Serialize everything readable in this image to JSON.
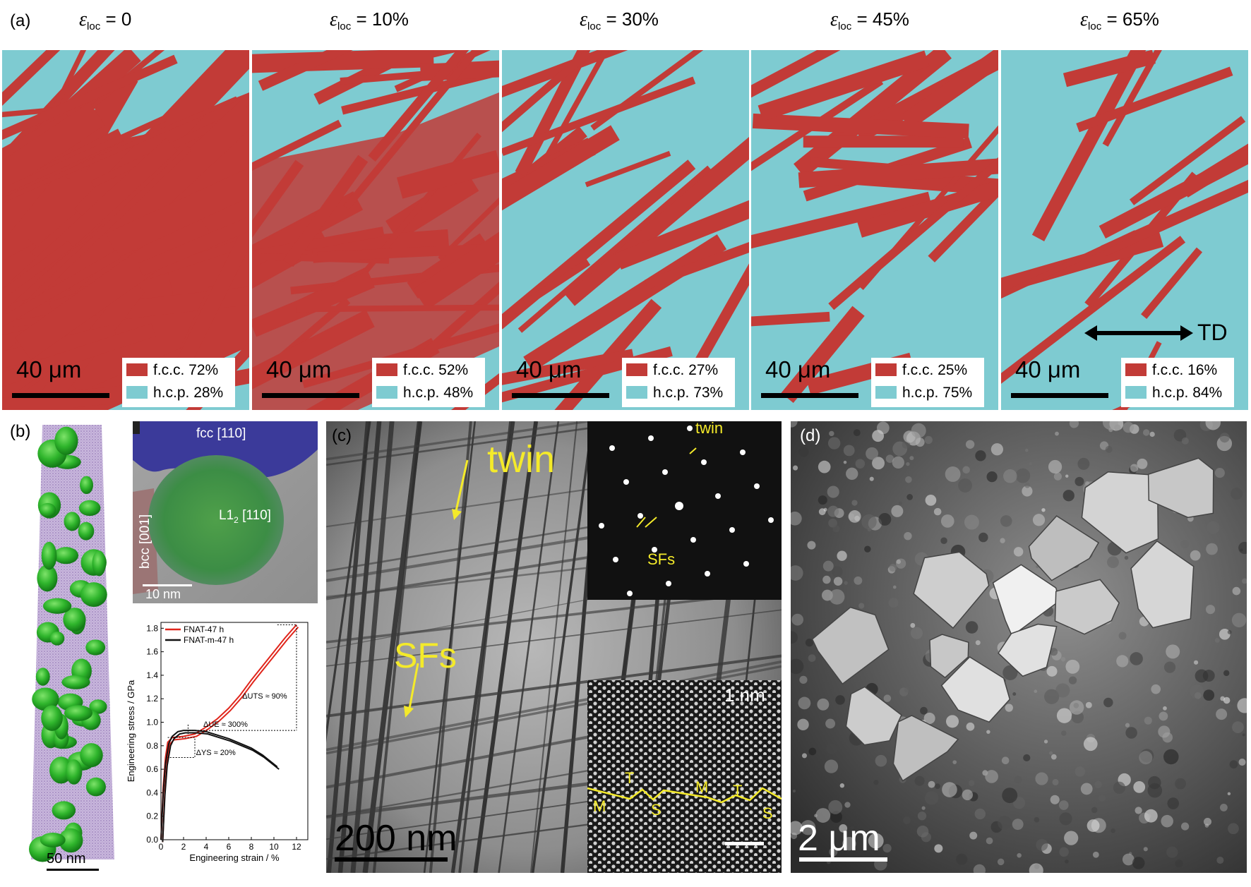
{
  "panel_labels": {
    "a": "(a)",
    "b": "(b)",
    "c": "(c)",
    "d": "(d)"
  },
  "colors": {
    "fcc": "#c23b37",
    "hcp": "#7ecbd1",
    "annotation_yellow": "#f4ea2a"
  },
  "strain_maps": [
    {
      "eps": "ε",
      "sub": "loc",
      "value": " = 0",
      "scale": "40 μm",
      "fcc": "f.c.c. 72%",
      "hcp": "h.c.p. 28%",
      "fcc_frac": 0.72
    },
    {
      "eps": "ε",
      "sub": "loc",
      "value": " = 10%",
      "scale": "40 μm",
      "fcc": "f.c.c. 52%",
      "hcp": "h.c.p. 48%",
      "fcc_frac": 0.52
    },
    {
      "eps": "ε",
      "sub": "loc",
      "value": " = 30%",
      "scale": "40 μm",
      "fcc": "f.c.c. 27%",
      "hcp": "h.c.p. 73%",
      "fcc_frac": 0.27
    },
    {
      "eps": "ε",
      "sub": "loc",
      "value": " = 45%",
      "scale": "40 μm",
      "fcc": "f.c.c. 25%",
      "hcp": "h.c.p. 75%",
      "fcc_frac": 0.25
    },
    {
      "eps": "ε",
      "sub": "loc",
      "value": " = 65%",
      "scale": "40 μm",
      "fcc": "f.c.c. 16%",
      "hcp": "h.c.p. 84%",
      "fcc_frac": 0.16
    }
  ],
  "td_label": "TD",
  "panel_b": {
    "apt_scale": "50 nm",
    "tem_fcc": "fcc [110]",
    "tem_l12": "L1",
    "tem_l12_sub": "2",
    "tem_l12_tail": " [110]",
    "tem_bcc": "bcc [001]",
    "tem_scale": "10 nm"
  },
  "chart_data": {
    "type": "line",
    "xlabel": "Engineering strain / %",
    "ylabel": "Engineering stress / GPa",
    "xlim": [
      0,
      13
    ],
    "ylim": [
      0,
      1.85
    ],
    "xticks": [
      "0",
      "2",
      "4",
      "6",
      "8",
      "10",
      "12"
    ],
    "yticks": [
      "0.0",
      "0.2",
      "0.4",
      "0.6",
      "0.8",
      "1.0",
      "1.2",
      "1.4",
      "1.6",
      "1.8"
    ],
    "series": [
      {
        "name": "FNAT-47 h",
        "color": "#e0251b",
        "x": [
          0,
          0.2,
          0.4,
          0.6,
          1.0,
          2.0,
          3.0,
          4.0,
          5.0,
          6.0,
          7.0,
          8.0,
          9.0,
          10.0,
          11.0,
          12.0
        ],
        "y": [
          0,
          0.45,
          0.7,
          0.83,
          0.87,
          0.88,
          0.9,
          0.96,
          1.03,
          1.12,
          1.23,
          1.36,
          1.48,
          1.6,
          1.72,
          1.83
        ]
      },
      {
        "name": "FNAT-m-47 h",
        "color": "#111111",
        "x": [
          0,
          0.2,
          0.4,
          0.7,
          1.0,
          1.5,
          2.0,
          3.0,
          4.0,
          5.0,
          6.0,
          7.0,
          8.0,
          9.0,
          10.3
        ],
        "y": [
          0,
          0.4,
          0.65,
          0.82,
          0.88,
          0.92,
          0.93,
          0.93,
          0.92,
          0.89,
          0.86,
          0.82,
          0.78,
          0.72,
          0.62
        ]
      }
    ],
    "annotations": [
      "ΔUTS ≈ 90%",
      "ΔUE ≈ 300%",
      "ΔYS ≈ 20%"
    ],
    "legend_position": "top-left"
  },
  "panel_c": {
    "twin": "twin",
    "sfs": "SFs",
    "scale": "200 nm",
    "diff_twin": "twin",
    "diff_sfs": "SFs",
    "hr_scale": "1 nm",
    "hr_labels": [
      "M",
      "T",
      "S",
      "M",
      "T",
      "S"
    ]
  },
  "panel_d": {
    "scale": "2 μm"
  }
}
